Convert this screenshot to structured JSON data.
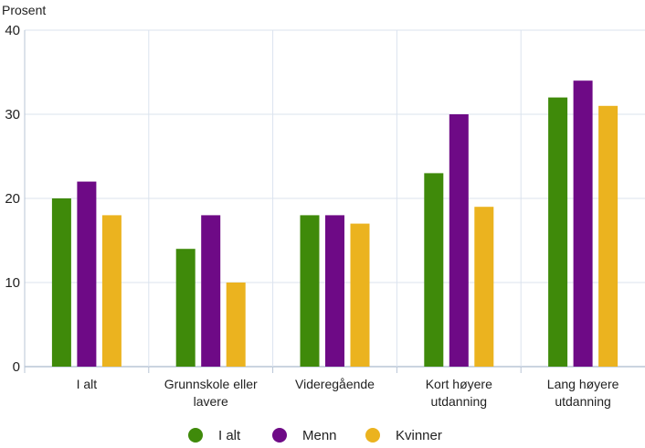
{
  "chart_data": {
    "type": "bar",
    "ylabel": "Prosent",
    "ylim": [
      0,
      40
    ],
    "yticks": [
      0,
      10,
      20,
      30,
      40
    ],
    "categories": [
      [
        "I alt"
      ],
      [
        "Grunnskole eller",
        "lavere"
      ],
      [
        "Videregående"
      ],
      [
        "Kort høyere",
        "utdanning"
      ],
      [
        "Lang høyere",
        "utdanning"
      ]
    ],
    "series": [
      {
        "name": "I alt",
        "color": "#3f8a0a",
        "values": [
          20,
          14,
          18,
          23,
          32
        ]
      },
      {
        "name": "Menn",
        "color": "#6e0a86",
        "values": [
          22,
          18,
          18,
          30,
          34
        ]
      },
      {
        "name": "Kvinner",
        "color": "#ebb31f",
        "values": [
          18,
          10,
          17,
          19,
          31
        ]
      }
    ],
    "grid": true,
    "legend_position": "bottom"
  },
  "colors": {
    "grid": "#dbe3ee",
    "axis": "#b8c5d6"
  }
}
